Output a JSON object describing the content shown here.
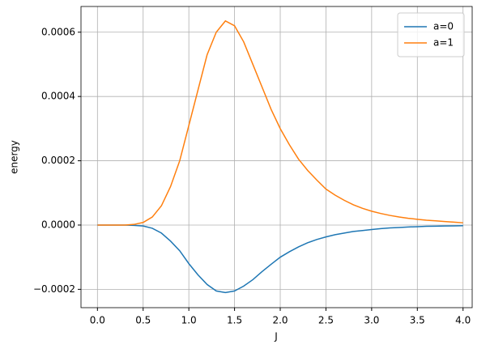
{
  "chart_data": {
    "type": "line",
    "xlabel": "J",
    "ylabel": "energy",
    "x": [
      0,
      0.1,
      0.2,
      0.3,
      0.4,
      0.5,
      0.6,
      0.7,
      0.8,
      0.9,
      1.0,
      1.1,
      1.2,
      1.3,
      1.4,
      1.5,
      1.6,
      1.7,
      1.8,
      1.9,
      2.0,
      2.1,
      2.2,
      2.3,
      2.4,
      2.5,
      2.6,
      2.7,
      2.8,
      2.9,
      3.0,
      3.1,
      3.2,
      3.3,
      3.4,
      3.5,
      3.6,
      3.7,
      3.8,
      3.9,
      4.0
    ],
    "series": [
      {
        "name": "a=0",
        "color": "#1f77b4",
        "values": [
          0,
          0,
          0,
          0,
          -1e-06,
          -3e-06,
          -1e-05,
          -2.5e-05,
          -5e-05,
          -8e-05,
          -0.00012,
          -0.000155,
          -0.000185,
          -0.000205,
          -0.00021,
          -0.000205,
          -0.00019,
          -0.00017,
          -0.000145,
          -0.000122,
          -0.0001,
          -8.3e-05,
          -6.8e-05,
          -5.5e-05,
          -4.5e-05,
          -3.7e-05,
          -3e-05,
          -2.5e-05,
          -2e-05,
          -1.7e-05,
          -1.4e-05,
          -1.1e-05,
          -9e-06,
          -7.5e-06,
          -6e-06,
          -5e-06,
          -4e-06,
          -3.5e-06,
          -3e-06,
          -2.5e-06,
          -2e-06
        ]
      },
      {
        "name": "a=1",
        "color": "#ff7f0e",
        "values": [
          0,
          0,
          0,
          0,
          2e-06,
          8e-06,
          2.5e-05,
          6e-05,
          0.00012,
          0.0002,
          0.00031,
          0.00042,
          0.00053,
          0.0006,
          0.000635,
          0.00062,
          0.00057,
          0.0005,
          0.00043,
          0.00036,
          0.0003,
          0.00025,
          0.000205,
          0.00017,
          0.00014,
          0.000112,
          9.3e-05,
          7.7e-05,
          6.3e-05,
          5.2e-05,
          4.3e-05,
          3.6e-05,
          3e-05,
          2.5e-05,
          2.1e-05,
          1.8e-05,
          1.5e-05,
          1.3e-05,
          1.1e-05,
          9e-06,
          7e-06
        ]
      }
    ],
    "xlim": [
      -0.18,
      4.1
    ],
    "ylim": [
      -0.000257,
      0.00068
    ],
    "xticks": [
      {
        "value": 0,
        "label": "0.0"
      },
      0.5,
      {
        "value": 1,
        "label": "1.0"
      },
      1.5,
      {
        "value": 2,
        "label": "2.0"
      },
      2.5,
      {
        "value": 3,
        "label": "3.0"
      },
      3.5,
      {
        "value": 4,
        "label": "4.0"
      }
    ],
    "yticks": [
      {
        "value": -0.0002,
        "label": "−0.0002"
      },
      {
        "value": 0,
        "label": "0.0000"
      },
      {
        "value": 0.0002,
        "label": "0.0002"
      },
      {
        "value": 0.0004,
        "label": "0.0004"
      },
      {
        "value": 0.0006,
        "label": "0.0006"
      }
    ],
    "grid": true,
    "legend": "upper right"
  }
}
